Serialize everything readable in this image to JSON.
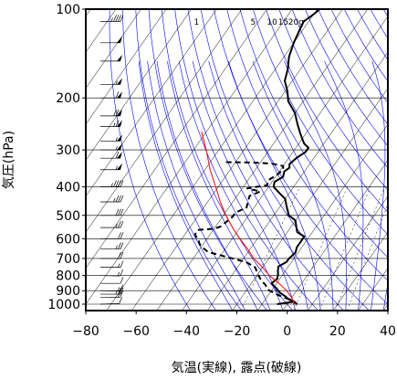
{
  "chart_data": {
    "type": "line",
    "chart_kind": "skew-T log-P sounding",
    "title": "",
    "xlabel": "気温(実線), 露点(破線)",
    "ylabel": "気圧(hPa)",
    "xlim": [
      -80,
      40
    ],
    "ylim": [
      1050,
      100
    ],
    "y_scale": "log",
    "x_ticks": [
      -80,
      -60,
      -40,
      -20,
      0,
      20,
      40
    ],
    "x_tick_labels": [
      "−80",
      "−60",
      "−40",
      "−20",
      "0",
      "20",
      "40"
    ],
    "y_ticks": [
      100,
      200,
      300,
      400,
      500,
      600,
      700,
      800,
      900,
      1000
    ],
    "mixing_ratio_labels": [
      "1",
      "5",
      "10",
      "15",
      "20g"
    ],
    "grid": true,
    "series": [
      {
        "role": "temperature",
        "line_style": "solid",
        "color": "#000000",
        "points": [
          [
            -4,
            1000
          ],
          [
            2,
            980
          ],
          [
            -1,
            960
          ],
          [
            -3,
            940
          ],
          [
            -6,
            915
          ],
          [
            -9,
            880
          ],
          [
            -12,
            850
          ],
          [
            -11,
            820
          ],
          [
            -12,
            790
          ],
          [
            -13,
            770
          ],
          [
            -14,
            745
          ],
          [
            -12,
            720
          ],
          [
            -12,
            700
          ],
          [
            -11,
            670
          ],
          [
            -12,
            640
          ],
          [
            -12,
            610
          ],
          [
            -12,
            590
          ],
          [
            -16,
            570
          ],
          [
            -18,
            545
          ],
          [
            -20,
            520
          ],
          [
            -24,
            500
          ],
          [
            -26,
            480
          ],
          [
            -28,
            460
          ],
          [
            -30,
            440
          ],
          [
            -34,
            420
          ],
          [
            -38,
            400
          ],
          [
            -39,
            385
          ],
          [
            -37,
            370
          ],
          [
            -38,
            355
          ],
          [
            -37,
            345
          ],
          [
            -38,
            335
          ],
          [
            -37,
            320
          ],
          [
            -35,
            305
          ],
          [
            -35,
            295
          ],
          [
            -38,
            285
          ],
          [
            -42,
            265
          ],
          [
            -46,
            245
          ],
          [
            -50,
            225
          ],
          [
            -56,
            205
          ],
          [
            -59,
            190
          ],
          [
            -63,
            175
          ],
          [
            -65,
            160
          ],
          [
            -68,
            145
          ],
          [
            -70,
            130
          ],
          [
            -71,
            120
          ],
          [
            -72,
            110
          ],
          [
            -70,
            104
          ],
          [
            -69,
            100
          ]
        ]
      },
      {
        "role": "dewpoint",
        "line_style": "dashed",
        "color": "#000000",
        "points": [
          [
            4,
            1000
          ],
          [
            1,
            970
          ],
          [
            -3,
            950
          ],
          [
            -8,
            920
          ],
          [
            -12,
            890
          ],
          [
            -14,
            860
          ],
          [
            -17,
            830
          ],
          [
            -20,
            790
          ],
          [
            -23,
            750
          ],
          [
            -28,
            720
          ],
          [
            -36,
            695
          ],
          [
            -46,
            665
          ],
          [
            -49,
            645
          ],
          [
            -51,
            630
          ],
          [
            -52,
            620
          ],
          [
            -53,
            605
          ],
          [
            -55,
            590
          ],
          [
            -56,
            580
          ],
          [
            -56,
            560
          ],
          [
            -50,
            555
          ],
          [
            -48,
            545
          ],
          [
            -47,
            525
          ],
          [
            -46,
            505
          ],
          [
            -46,
            490
          ],
          [
            -43,
            470
          ],
          [
            -44,
            450
          ],
          [
            -45,
            430
          ],
          [
            -42,
            415
          ],
          [
            -48,
            405
          ],
          [
            -41,
            395
          ],
          [
            -42,
            380
          ],
          [
            -40,
            365
          ],
          [
            -39,
            350
          ],
          [
            -40,
            340
          ],
          [
            -45,
            334
          ],
          [
            -53,
            331
          ],
          [
            -65,
            330
          ]
        ]
      },
      {
        "role": "parcel",
        "line_style": "solid",
        "color": "#ff0000",
        "points": [
          [
            3,
            1000
          ],
          [
            0,
            950
          ],
          [
            -4,
            900
          ],
          [
            -9,
            850
          ],
          [
            -15,
            800
          ],
          [
            -20,
            750
          ],
          [
            -26,
            700
          ],
          [
            -31,
            650
          ],
          [
            -37,
            600
          ],
          [
            -43,
            550
          ],
          [
            -49,
            500
          ],
          [
            -55,
            450
          ],
          [
            -61,
            400
          ],
          [
            -68,
            350
          ],
          [
            -75,
            300
          ],
          [
            -82,
            260
          ]
        ]
      }
    ],
    "wind_profile": {
      "units": "kt",
      "levels": [
        {
          "p": 1000,
          "dir": 250,
          "spd": 10
        },
        {
          "p": 950,
          "dir": 260,
          "spd": 20
        },
        {
          "p": 925,
          "dir": 270,
          "spd": 25
        },
        {
          "p": 900,
          "dir": 280,
          "spd": 15
        },
        {
          "p": 850,
          "dir": 270,
          "spd": 10
        },
        {
          "p": 800,
          "dir": 280,
          "spd": 15
        },
        {
          "p": 750,
          "dir": 270,
          "spd": 15
        },
        {
          "p": 700,
          "dir": 270,
          "spd": 20
        },
        {
          "p": 650,
          "dir": 270,
          "spd": 25
        },
        {
          "p": 600,
          "dir": 270,
          "spd": 20
        },
        {
          "p": 550,
          "dir": 270,
          "spd": 25
        },
        {
          "p": 500,
          "dir": 270,
          "spd": 30
        },
        {
          "p": 450,
          "dir": 270,
          "spd": 35
        },
        {
          "p": 400,
          "dir": 270,
          "spd": 45
        },
        {
          "p": 350,
          "dir": 270,
          "spd": 55
        },
        {
          "p": 320,
          "dir": 270,
          "spd": 60
        },
        {
          "p": 300,
          "dir": 270,
          "spd": 55
        },
        {
          "p": 280,
          "dir": 270,
          "spd": 55
        },
        {
          "p": 250,
          "dir": 270,
          "spd": 65
        },
        {
          "p": 230,
          "dir": 270,
          "spd": 70
        },
        {
          "p": 200,
          "dir": 270,
          "spd": 60
        },
        {
          "p": 180,
          "dir": 270,
          "spd": 55
        },
        {
          "p": 150,
          "dir": 270,
          "spd": 50
        },
        {
          "p": 130,
          "dir": 270,
          "spd": 50
        },
        {
          "p": 110,
          "dir": 270,
          "spd": 45
        },
        {
          "p": 100,
          "dir": 270,
          "spd": 40
        }
      ]
    },
    "background_line_colors": {
      "isotherms_isobars": "#000000",
      "dry_adiabats": "#0000ff",
      "moist_adiabats": "#0000ff",
      "mixing_ratio": "#000000",
      "parcel": "#ff0000",
      "profiles": "#000000"
    }
  }
}
